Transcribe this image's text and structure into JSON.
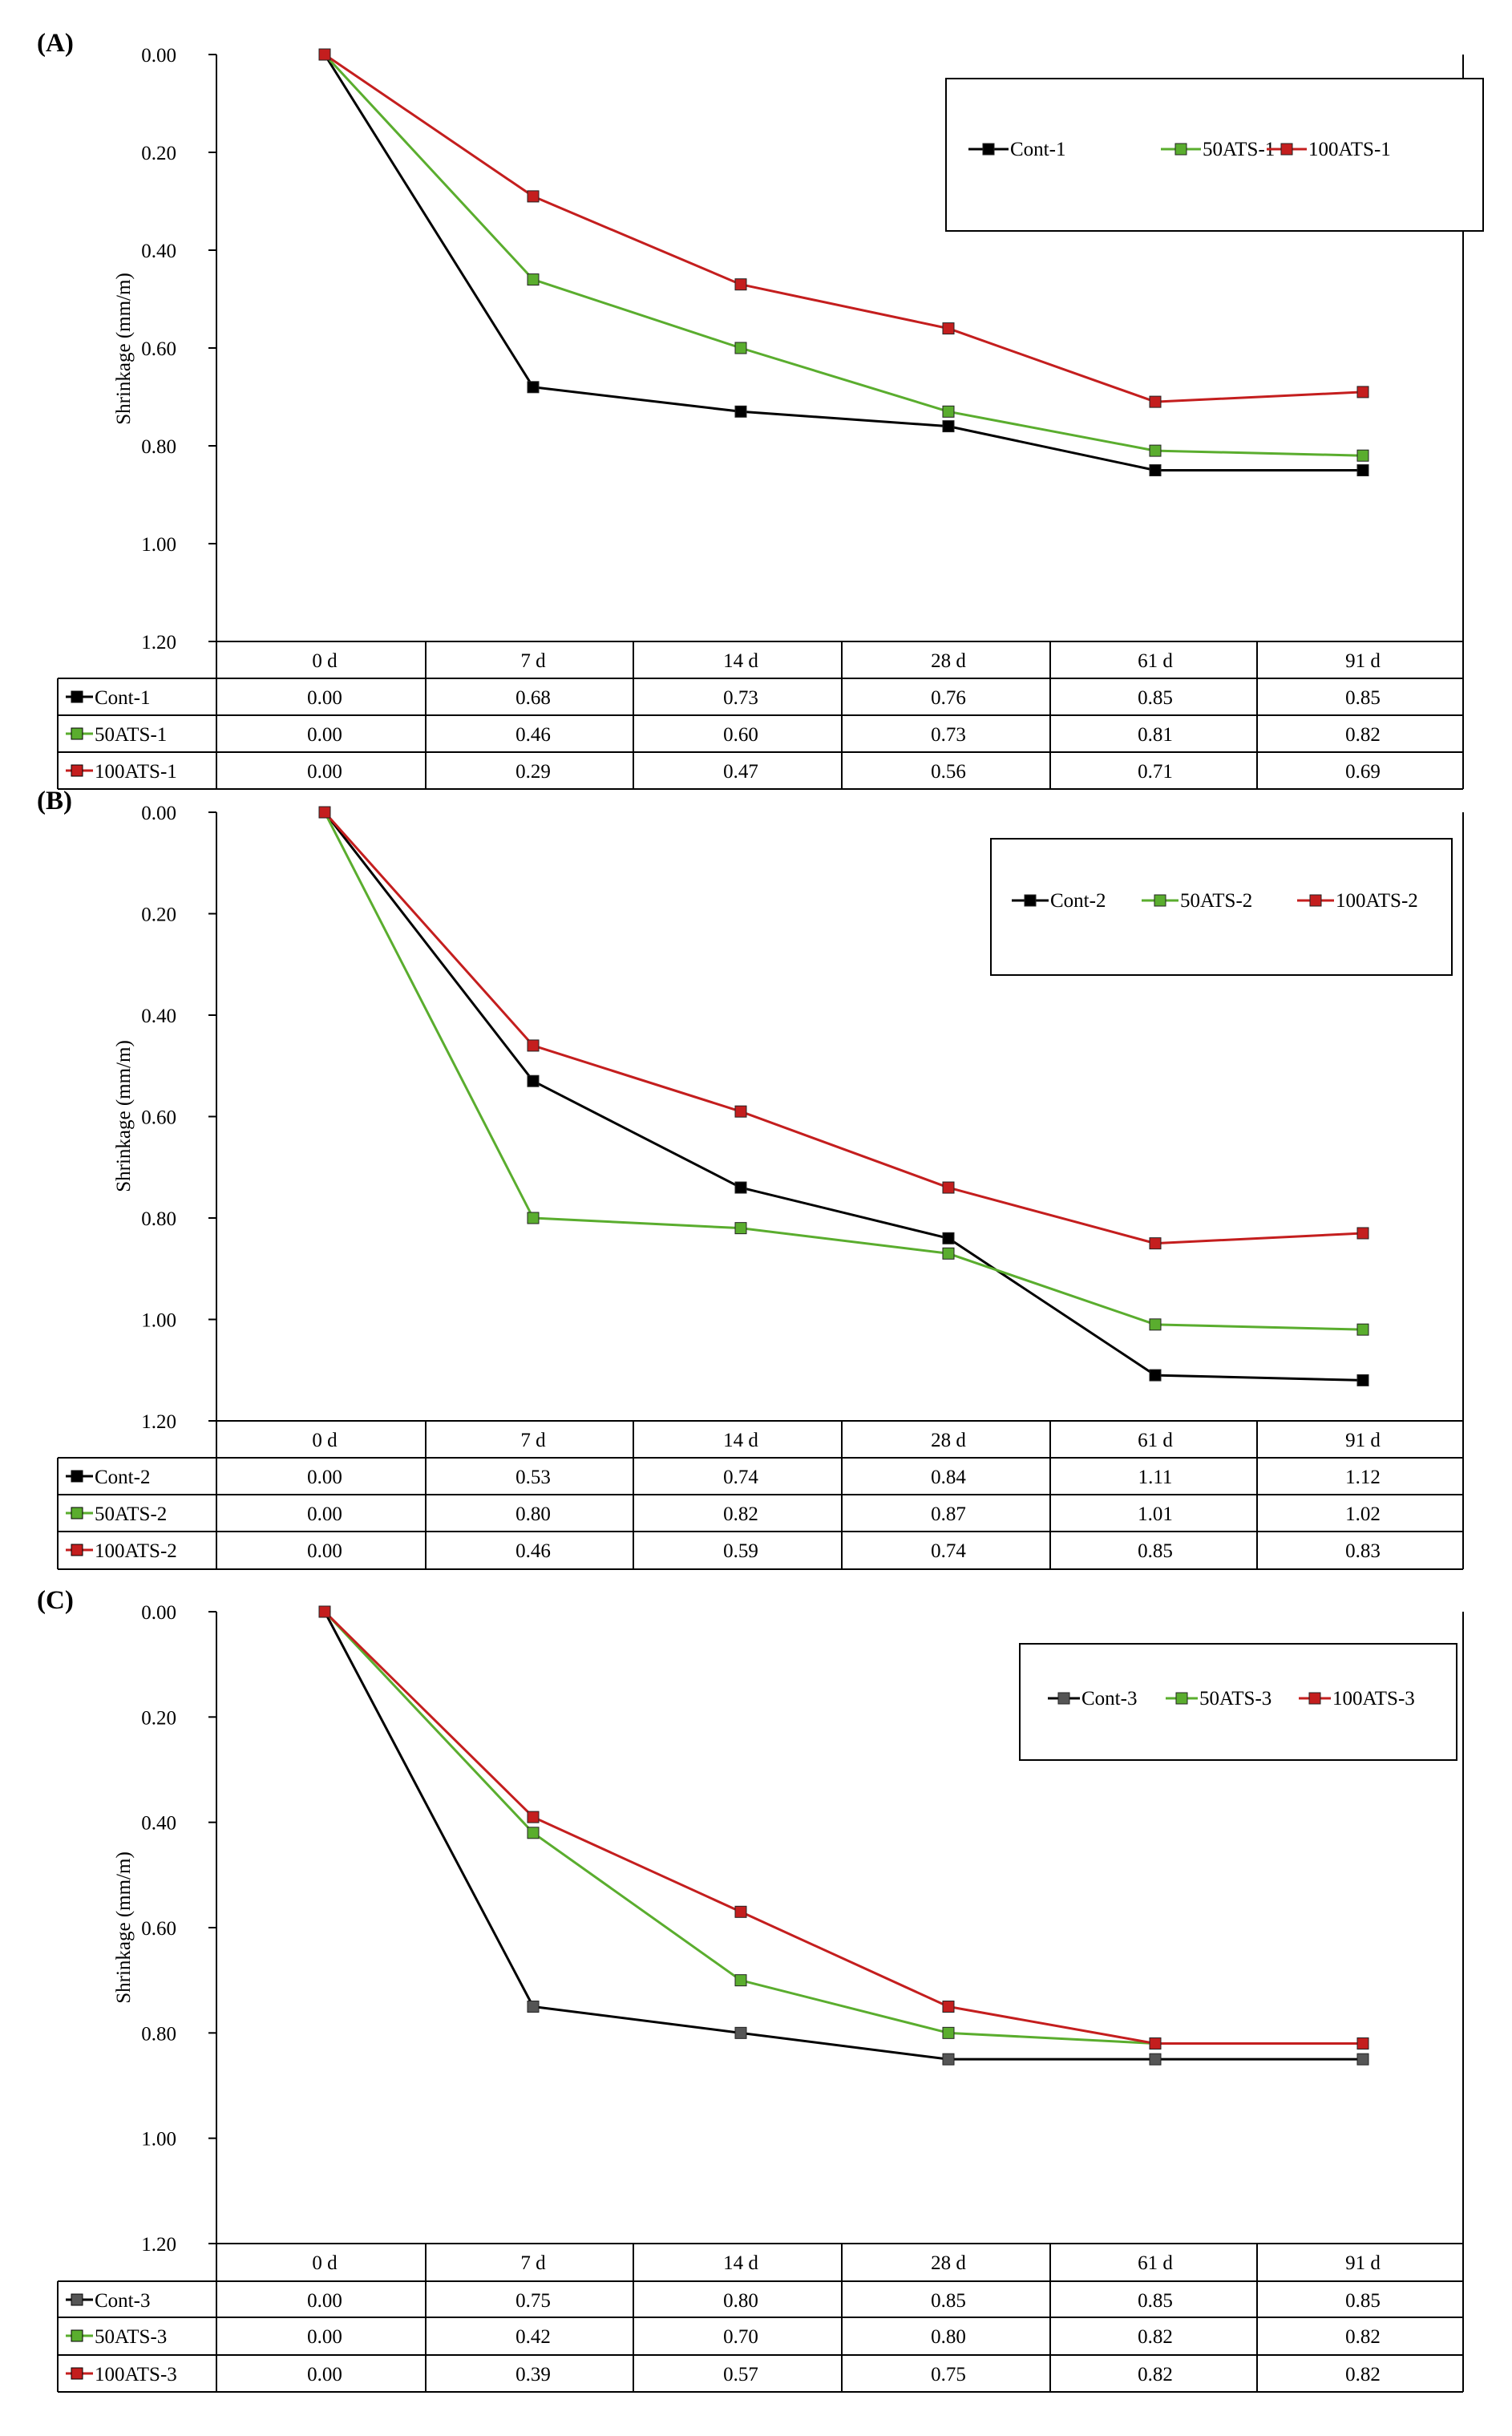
{
  "figure": {
    "colors": {
      "cont": "#000000",
      "ats50": "#5aad2e",
      "ats100": "#c41e1e",
      "cont3_marker": "#555555"
    }
  },
  "chart_data": [
    {
      "type": "line",
      "panel_label": "(A)",
      "title": "",
      "xlabel": "",
      "ylabel": "Shrinkage (mm/m)",
      "y_axis": {
        "min": 0,
        "max": 1.2,
        "step": 0.2,
        "reversed": true,
        "tick_labels": [
          "0.00",
          "0.20",
          "0.40",
          "0.60",
          "0.80",
          "1.00",
          "1.20"
        ]
      },
      "categories": [
        "0 d",
        "7 d",
        "14 d",
        "28 d",
        "61 d",
        "91 d"
      ],
      "series": [
        {
          "name": "Cont-1",
          "color": "#000000",
          "values": [
            0.0,
            0.68,
            0.73,
            0.76,
            0.85,
            0.85
          ],
          "labels": [
            "0.00",
            "0.68",
            "0.73",
            "0.76",
            "0.85",
            "0.85"
          ]
        },
        {
          "name": "50ATS-1",
          "color": "#5aad2e",
          "values": [
            0.0,
            0.46,
            0.6,
            0.73,
            0.81,
            0.82
          ],
          "labels": [
            "0.00",
            "0.46",
            "0.60",
            "0.73",
            "0.81",
            "0.82"
          ]
        },
        {
          "name": "100ATS-1",
          "color": "#c41e1e",
          "values": [
            0.0,
            0.29,
            0.47,
            0.56,
            0.71,
            0.69
          ],
          "labels": [
            "0.00",
            "0.29",
            "0.47",
            "0.56",
            "0.71",
            "0.69"
          ]
        }
      ],
      "legend_position": "top-right",
      "data_table": true
    },
    {
      "type": "line",
      "panel_label": "(B)",
      "title": "",
      "xlabel": "",
      "ylabel": "Shrinkage (mm/m)",
      "y_axis": {
        "min": 0,
        "max": 1.2,
        "step": 0.2,
        "reversed": true,
        "tick_labels": [
          "0.00",
          "0.20",
          "0.40",
          "0.60",
          "0.80",
          "1.00",
          "1.20"
        ]
      },
      "categories": [
        "0 d",
        "7 d",
        "14 d",
        "28 d",
        "61 d",
        "91 d"
      ],
      "series": [
        {
          "name": "Cont-2",
          "color": "#000000",
          "values": [
            0.0,
            0.53,
            0.74,
            0.84,
            1.11,
            1.12
          ],
          "labels": [
            "0.00",
            "0.53",
            "0.74",
            "0.84",
            "1.11",
            "1.12"
          ]
        },
        {
          "name": "50ATS-2",
          "color": "#5aad2e",
          "values": [
            0.0,
            0.8,
            0.82,
            0.87,
            1.01,
            1.02
          ],
          "labels": [
            "0.00",
            "0.80",
            "0.82",
            "0.87",
            "1.01",
            "1.02"
          ]
        },
        {
          "name": "100ATS-2",
          "color": "#c41e1e",
          "values": [
            0.0,
            0.46,
            0.59,
            0.74,
            0.85,
            0.83
          ],
          "labels": [
            "0.00",
            "0.46",
            "0.59",
            "0.74",
            "0.85",
            "0.83"
          ]
        }
      ],
      "legend_position": "top-right",
      "data_table": true
    },
    {
      "type": "line",
      "panel_label": "(C)",
      "title": "",
      "xlabel": "",
      "ylabel": "Shrinkage (mm/m)",
      "y_axis": {
        "min": 0,
        "max": 1.2,
        "step": 0.2,
        "reversed": true,
        "tick_labels": [
          "0.00",
          "0.20",
          "0.40",
          "0.60",
          "0.80",
          "1.00",
          "1.20"
        ]
      },
      "categories": [
        "0 d",
        "7 d",
        "14 d",
        "28 d",
        "61 d",
        "91 d"
      ],
      "series": [
        {
          "name": "Cont-3",
          "color": "#000000",
          "marker_color": "#555555",
          "values": [
            0.0,
            0.75,
            0.8,
            0.85,
            0.85,
            0.85
          ],
          "labels": [
            "0.00",
            "0.75",
            "0.80",
            "0.85",
            "0.85",
            "0.85"
          ]
        },
        {
          "name": "50ATS-3",
          "color": "#5aad2e",
          "values": [
            0.0,
            0.42,
            0.7,
            0.8,
            0.82,
            0.82
          ],
          "labels": [
            "0.00",
            "0.42",
            "0.70",
            "0.80",
            "0.82",
            "0.82"
          ]
        },
        {
          "name": "100ATS-3",
          "color": "#c41e1e",
          "values": [
            0.0,
            0.39,
            0.57,
            0.75,
            0.82,
            0.82
          ],
          "labels": [
            "0.00",
            "0.39",
            "0.57",
            "0.75",
            "0.82",
            "0.82"
          ]
        }
      ],
      "legend_position": "top-right",
      "data_table": true
    }
  ]
}
